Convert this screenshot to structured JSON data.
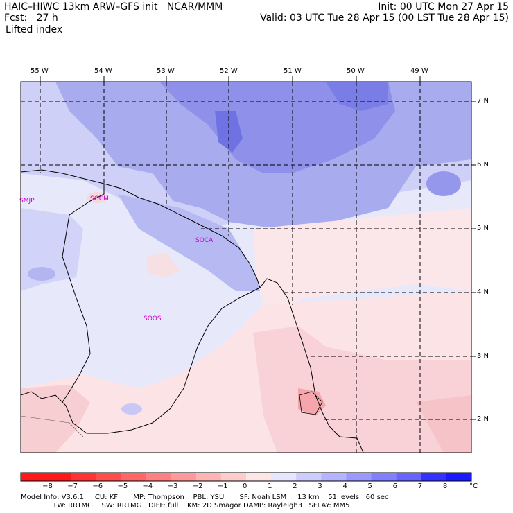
{
  "header": {
    "title_left": "HAIC–HIWC 13km ARW–GFS init   NCAR/MMM",
    "fcst": "Fcst:   27 h",
    "field": "Lifted index",
    "init": "Init: 00 UTC Mon 27 Apr 15",
    "valid": "Valid: 03 UTC Tue 28 Apr 15 (00 LST Tue 28 Apr 15)"
  },
  "map": {
    "lon_labels": [
      "55 W",
      "54 W",
      "53 W",
      "52 W",
      "51 W",
      "50 W",
      "49 W"
    ],
    "lat_labels": [
      "7 N",
      "6 N",
      "5 N",
      "4 N",
      "3 N",
      "2 N"
    ],
    "stations": [
      "SMJP",
      "SOCM",
      "SOCA",
      "SOOS"
    ]
  },
  "colorbar": {
    "ticks": [
      "−8",
      "−7",
      "−6",
      "−5",
      "−4",
      "−3",
      "−2",
      "−1",
      "0",
      "1",
      "2",
      "3",
      "4",
      "5",
      "6",
      "7",
      "8"
    ],
    "unit": "°C",
    "colors": [
      "#ff1a1a",
      "#ff3333",
      "#ff4d4d",
      "#ff6666",
      "#ff8080",
      "#ff9999",
      "#ffb3b3",
      "#ffcccc",
      "#ffe6e6",
      "#e6e6ff",
      "#ccccff",
      "#b3b3ff",
      "#9999ff",
      "#8080ff",
      "#6666ff",
      "#3333ff",
      "#1a1aff"
    ]
  },
  "model_info": {
    "line1": "Model Info: V3.6.1     CU: KF       MP: Thompson    PBL: YSU       SF: Noah LSM     13 km    51 levels   60 sec",
    "line2": "               LW: RRTMG    SW: RRTMG   DIFF: full    KM: 2D Smagor DAMP: Rayleigh3   SFLAY: MM5"
  }
}
